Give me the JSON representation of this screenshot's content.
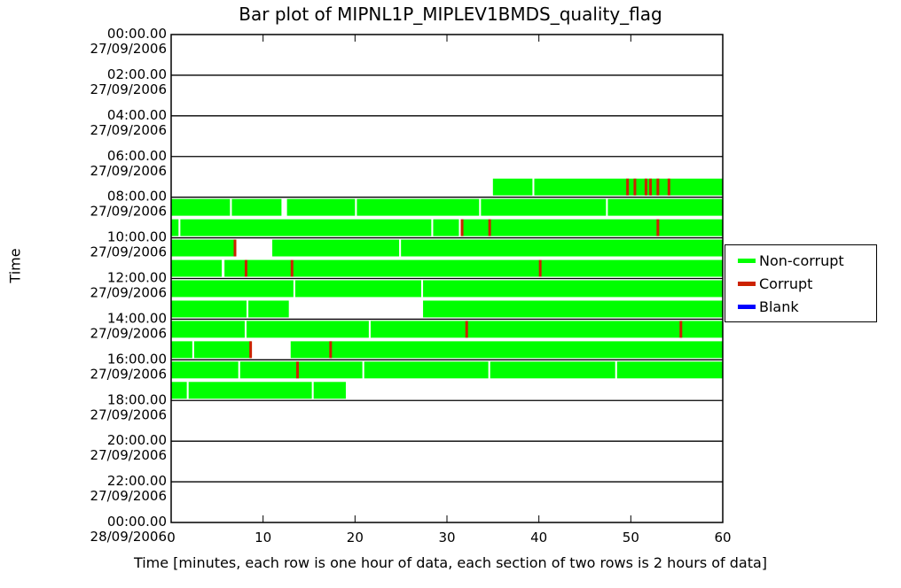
{
  "chart_data": {
    "type": "bar",
    "title": "Bar plot of MIPNL1P_MIPLEV1BMDS_quality_flag",
    "xlabel": "Time [minutes, each row is one hour of data, each section of two rows is 2 hours of data]",
    "ylabel": "Time",
    "xlim": [
      0,
      60
    ],
    "x_ticks": [
      "0",
      "10",
      "20",
      "30",
      "40",
      "50",
      "60"
    ],
    "y_ticks": [
      {
        "time": "00:00.00",
        "date": "27/09/2006"
      },
      {
        "time": "02:00.00",
        "date": "27/09/2006"
      },
      {
        "time": "04:00.00",
        "date": "27/09/2006"
      },
      {
        "time": "06:00.00",
        "date": "27/09/2006"
      },
      {
        "time": "08:00.00",
        "date": "27/09/2006"
      },
      {
        "time": "10:00.00",
        "date": "27/09/2006"
      },
      {
        "time": "12:00.00",
        "date": "27/09/2006"
      },
      {
        "time": "14:00.00",
        "date": "27/09/2006"
      },
      {
        "time": "16:00.00",
        "date": "27/09/2006"
      },
      {
        "time": "18:00.00",
        "date": "27/09/2006"
      },
      {
        "time": "20:00.00",
        "date": "27/09/2006"
      },
      {
        "time": "22:00.00",
        "date": "27/09/2006"
      },
      {
        "time": "00:00.00",
        "date": "28/09/2006"
      }
    ],
    "legend": [
      {
        "label": "Non-corrupt",
        "color": "#00ff00"
      },
      {
        "label": "Corrupt",
        "color": "#cc2200"
      },
      {
        "label": "Blank",
        "color": "#0000ff"
      }
    ],
    "legend_position": "right",
    "section_hours": 2,
    "rows_per_section": 2,
    "rows": [
      {
        "hour": 7,
        "segments": [
          [
            35,
            39.3
          ],
          [
            39.5,
            60
          ]
        ],
        "corrupt": [
          49.5,
          50.3,
          51.5,
          52.0,
          52.8,
          54.0
        ]
      },
      {
        "hour": 8,
        "segments": [
          [
            0,
            6.4
          ],
          [
            6.6,
            12.0
          ],
          [
            12.6,
            20.0
          ],
          [
            20.2,
            33.5
          ],
          [
            33.7,
            47.3
          ],
          [
            47.5,
            60
          ]
        ],
        "corrupt": []
      },
      {
        "hour": 9,
        "segments": [
          [
            0,
            0.8
          ],
          [
            1.0,
            28.3
          ],
          [
            28.5,
            31.3
          ],
          [
            31.5,
            60
          ]
        ],
        "corrupt": [
          31.5,
          34.5,
          52.8
        ]
      },
      {
        "hour": 10,
        "segments": [
          [
            0,
            7.0
          ],
          [
            11.0,
            24.8
          ],
          [
            25.0,
            60
          ]
        ],
        "corrupt": [
          6.8
        ]
      },
      {
        "hour": 11,
        "segments": [
          [
            0,
            5.5
          ],
          [
            5.8,
            60
          ]
        ],
        "corrupt": [
          8.0,
          13.0,
          40.0
        ]
      },
      {
        "hour": 12,
        "segments": [
          [
            0,
            13.3
          ],
          [
            13.5,
            27.2
          ],
          [
            27.4,
            60
          ]
        ],
        "corrupt": []
      },
      {
        "hour": 13,
        "segments": [
          [
            0,
            8.2
          ],
          [
            8.4,
            12.8
          ],
          [
            27.4,
            60
          ]
        ],
        "corrupt": []
      },
      {
        "hour": 14,
        "segments": [
          [
            0,
            8.0
          ],
          [
            8.2,
            21.5
          ],
          [
            21.7,
            60
          ]
        ],
        "corrupt": [
          32.0,
          55.3
        ]
      },
      {
        "hour": 15,
        "segments": [
          [
            0,
            2.3
          ],
          [
            2.5,
            8.7
          ],
          [
            13.0,
            60
          ]
        ],
        "corrupt": [
          8.5,
          17.2
        ]
      },
      {
        "hour": 16,
        "segments": [
          [
            0,
            7.3
          ],
          [
            7.5,
            20.8
          ],
          [
            21.0,
            34.5
          ],
          [
            34.7,
            48.3
          ],
          [
            48.5,
            60
          ]
        ],
        "corrupt": [
          13.6
        ]
      },
      {
        "hour": 17,
        "segments": [
          [
            0,
            1.7
          ],
          [
            1.9,
            15.3
          ],
          [
            15.5,
            19.0
          ]
        ],
        "corrupt": []
      }
    ]
  }
}
